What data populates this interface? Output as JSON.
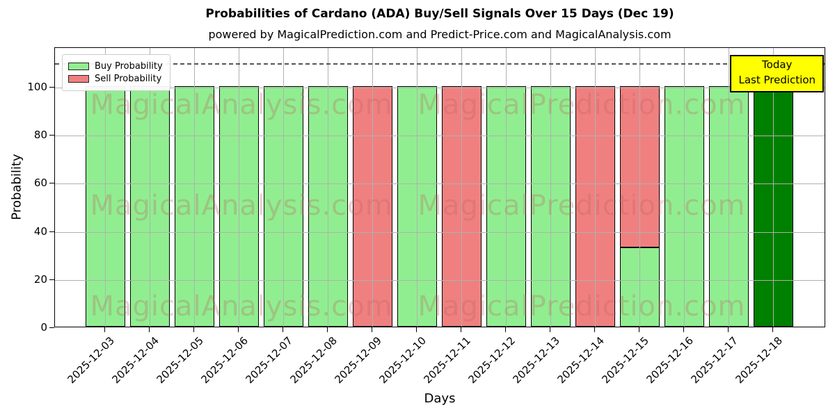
{
  "title": "Probabilities of Cardano (ADA) Buy/Sell Signals Over 15 Days (Dec 19)",
  "subtitle": "powered by MagicalPrediction.com and Predict-Price.com and MagicalAnalysis.com",
  "legend": {
    "items": [
      {
        "label": "Buy Probability",
        "color": "#90EE90"
      },
      {
        "label": "Sell Probability",
        "color": "#F08080"
      }
    ]
  },
  "annotation_box": {
    "line1": "Today",
    "line2": "Last Prediction",
    "bg_color": "#FFFF00"
  },
  "axes": {
    "xlabel": "Days",
    "ylabel": "Probability",
    "yticks": [
      0,
      20,
      40,
      60,
      80,
      100
    ],
    "ylim": [
      0,
      116.5
    ],
    "dashed_guide_y": 110,
    "grid": true
  },
  "watermarks": {
    "left_text": "MagicalAnalysis.com",
    "right_text": "MagicalPrediction.com"
  },
  "colors": {
    "buy": "#90EE90",
    "sell": "#F08080",
    "today_bar": "#008000",
    "grid": "#b0b0b0",
    "dashed_guide": "#555555",
    "watermark": "rgba(190, 100, 100, 0.30)",
    "annotation_bg": "#FFFF00"
  },
  "chart_data": {
    "type": "bar",
    "stacked": true,
    "title": "Probabilities of Cardano (ADA) Buy/Sell Signals Over 15 Days (Dec 19)",
    "xlabel": "Days",
    "ylabel": "Probability",
    "ylim": [
      0,
      116.5
    ],
    "grid": true,
    "legend_position": "upper left",
    "categories": [
      "2025-12-03",
      "2025-12-04",
      "2025-12-05",
      "2025-12-06",
      "2025-12-07",
      "2025-12-08",
      "2025-12-09",
      "2025-12-10",
      "2025-12-11",
      "2025-12-12",
      "2025-12-13",
      "2025-12-14",
      "2025-12-15",
      "2025-12-16",
      "2025-12-17",
      "2025-12-18"
    ],
    "series": [
      {
        "name": "Buy Probability",
        "color": "#90EE90",
        "values": [
          100,
          100,
          100,
          100,
          100,
          100,
          0,
          100,
          0,
          100,
          100,
          0,
          33,
          100,
          100,
          100
        ]
      },
      {
        "name": "Sell Probability",
        "color": "#F08080",
        "values": [
          0,
          0,
          0,
          0,
          0,
          0,
          100,
          0,
          100,
          0,
          0,
          100,
          67,
          0,
          0,
          0
        ]
      }
    ],
    "today_index": 15,
    "today_bar_color": "#008000",
    "dashed_guide_y": 110
  }
}
